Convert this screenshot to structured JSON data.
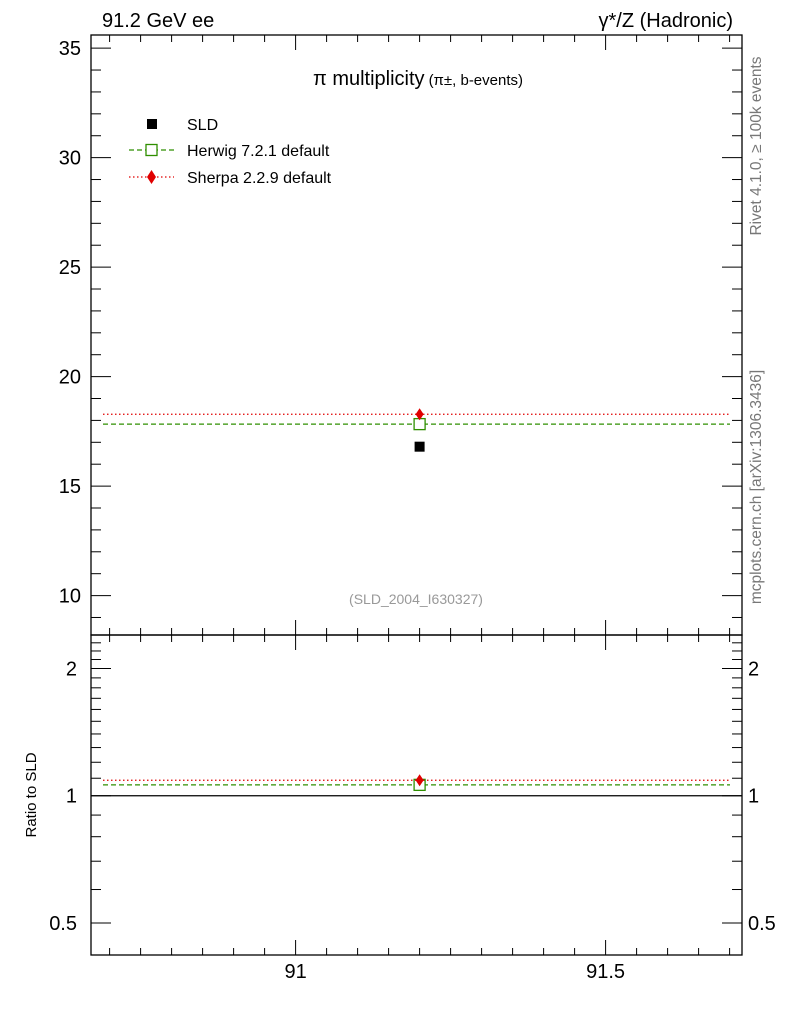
{
  "header": {
    "left": "91.2 GeV ee",
    "right": "γ*/Z (Hadronic)"
  },
  "side_labels": {
    "rivet": "Rivet 4.1.0, ≥ 100k events",
    "mcplots": "mcplots.cern.ch [arXiv:1306.3436]"
  },
  "chart_data": [
    {
      "type": "scatter",
      "title_main": "π multiplicity",
      "title_sub": "(π±, b-events)",
      "analysis_id": "(SLD_2004_I630327)",
      "xlim": [
        90.67,
        91.72
      ],
      "ylim": [
        8.2,
        35.6
      ],
      "xticks": [
        91,
        91.5
      ],
      "xtick_labels": [
        "91",
        "91.5"
      ],
      "yticks": [
        10,
        15,
        20,
        25,
        30,
        35
      ],
      "ytick_labels": [
        "10",
        "15",
        "20",
        "25",
        "30",
        "35"
      ],
      "legend_position": "top-left",
      "series": [
        {
          "name": "SLD",
          "marker": "square-filled",
          "color": "#000000",
          "x": [
            91.2
          ],
          "y": [
            16.8
          ]
        },
        {
          "name": "Herwig 7.2.1 default",
          "marker": "square-open",
          "line": "dashed",
          "color": "#2f8f00",
          "x": [
            91.2
          ],
          "y": [
            17.83
          ]
        },
        {
          "name": "Sherpa 2.2.9 default",
          "marker": "diamond",
          "line": "dotted",
          "color": "#e00000",
          "x": [
            91.2
          ],
          "y": [
            18.28
          ]
        }
      ]
    },
    {
      "type": "scatter",
      "ylabel": "Ratio to SLD",
      "xlim": [
        90.67,
        91.72
      ],
      "ylim": [
        0.42,
        2.4
      ],
      "yscale": "log",
      "yticks": [
        0.5,
        1,
        2
      ],
      "ytick_labels": [
        "0.5",
        "1",
        "2"
      ],
      "xticks": [
        91,
        91.5
      ],
      "xtick_labels": [
        "91",
        "91.5"
      ],
      "series": [
        {
          "name": "SLD",
          "color": "#000000",
          "x": [
            91.2
          ],
          "y": [
            1.0
          ]
        },
        {
          "name": "Herwig 7.2.1 default",
          "marker": "square-open",
          "line": "dashed",
          "color": "#2f8f00",
          "x": [
            91.2
          ],
          "y": [
            1.061
          ]
        },
        {
          "name": "Sherpa 2.2.9 default",
          "marker": "diamond",
          "line": "dotted",
          "color": "#e00000",
          "x": [
            91.2
          ],
          "y": [
            1.088
          ]
        }
      ]
    }
  ]
}
